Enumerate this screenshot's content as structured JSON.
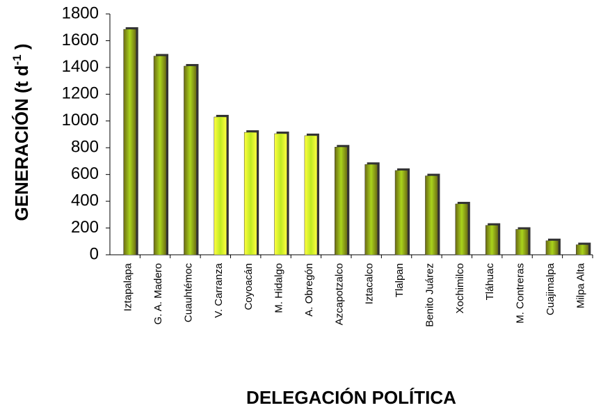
{
  "chart_data": {
    "type": "bar",
    "x_label": "DELEGACIÓN POLÍTICA",
    "y_label": [
      "GENERACIÓN (t d",
      "-1",
      " )"
    ],
    "categories": [
      "Iztapalapa",
      "G. A. Madero",
      "Cuauhtémoc",
      "V. Carranza",
      "Coyoacán",
      "M. Hidalgo",
      "A. Obregón",
      "Azcapotzalco",
      "Iztacalco",
      "Tlalpan",
      "Benito Juárez",
      "Xochimilco",
      "Tláhuac",
      "M. Contreras",
      "Cuajimalpa",
      "Milpa Alta"
    ],
    "values": [
      1685,
      1485,
      1410,
      1030,
      915,
      905,
      890,
      805,
      675,
      630,
      590,
      380,
      220,
      190,
      105,
      75
    ],
    "colors": [
      "#6b6b14",
      "#6b6b14",
      "#6b6b14",
      "#ffff40",
      "#ffff40",
      "#ffff40",
      "#ffff40",
      "#6b6b14",
      "#6b6b14",
      "#6b6b14",
      "#6b6b14",
      "#6b6b14",
      "#6b6b14",
      "#6b6b14",
      "#6b6b14",
      "#6b6b14"
    ],
    "ylim": [
      0,
      1800
    ],
    "yticks": [
      0,
      200,
      400,
      600,
      800,
      1000,
      1200,
      1400,
      1600,
      1800
    ]
  }
}
